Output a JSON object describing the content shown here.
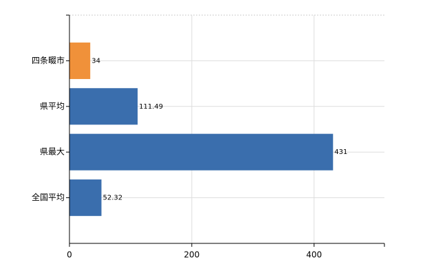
{
  "chart_data": {
    "type": "bar",
    "orientation": "horizontal",
    "categories": [
      "四条畷市",
      "県平均",
      "県最大",
      "全国平均"
    ],
    "values": [
      34,
      111.49,
      431,
      52.32
    ],
    "colors": [
      "#f0913a",
      "#3a6ead",
      "#3a6ead",
      "#3a6ead"
    ],
    "xlim": [
      0,
      515
    ],
    "xticks": [
      0,
      200,
      400
    ],
    "grid": true
  }
}
